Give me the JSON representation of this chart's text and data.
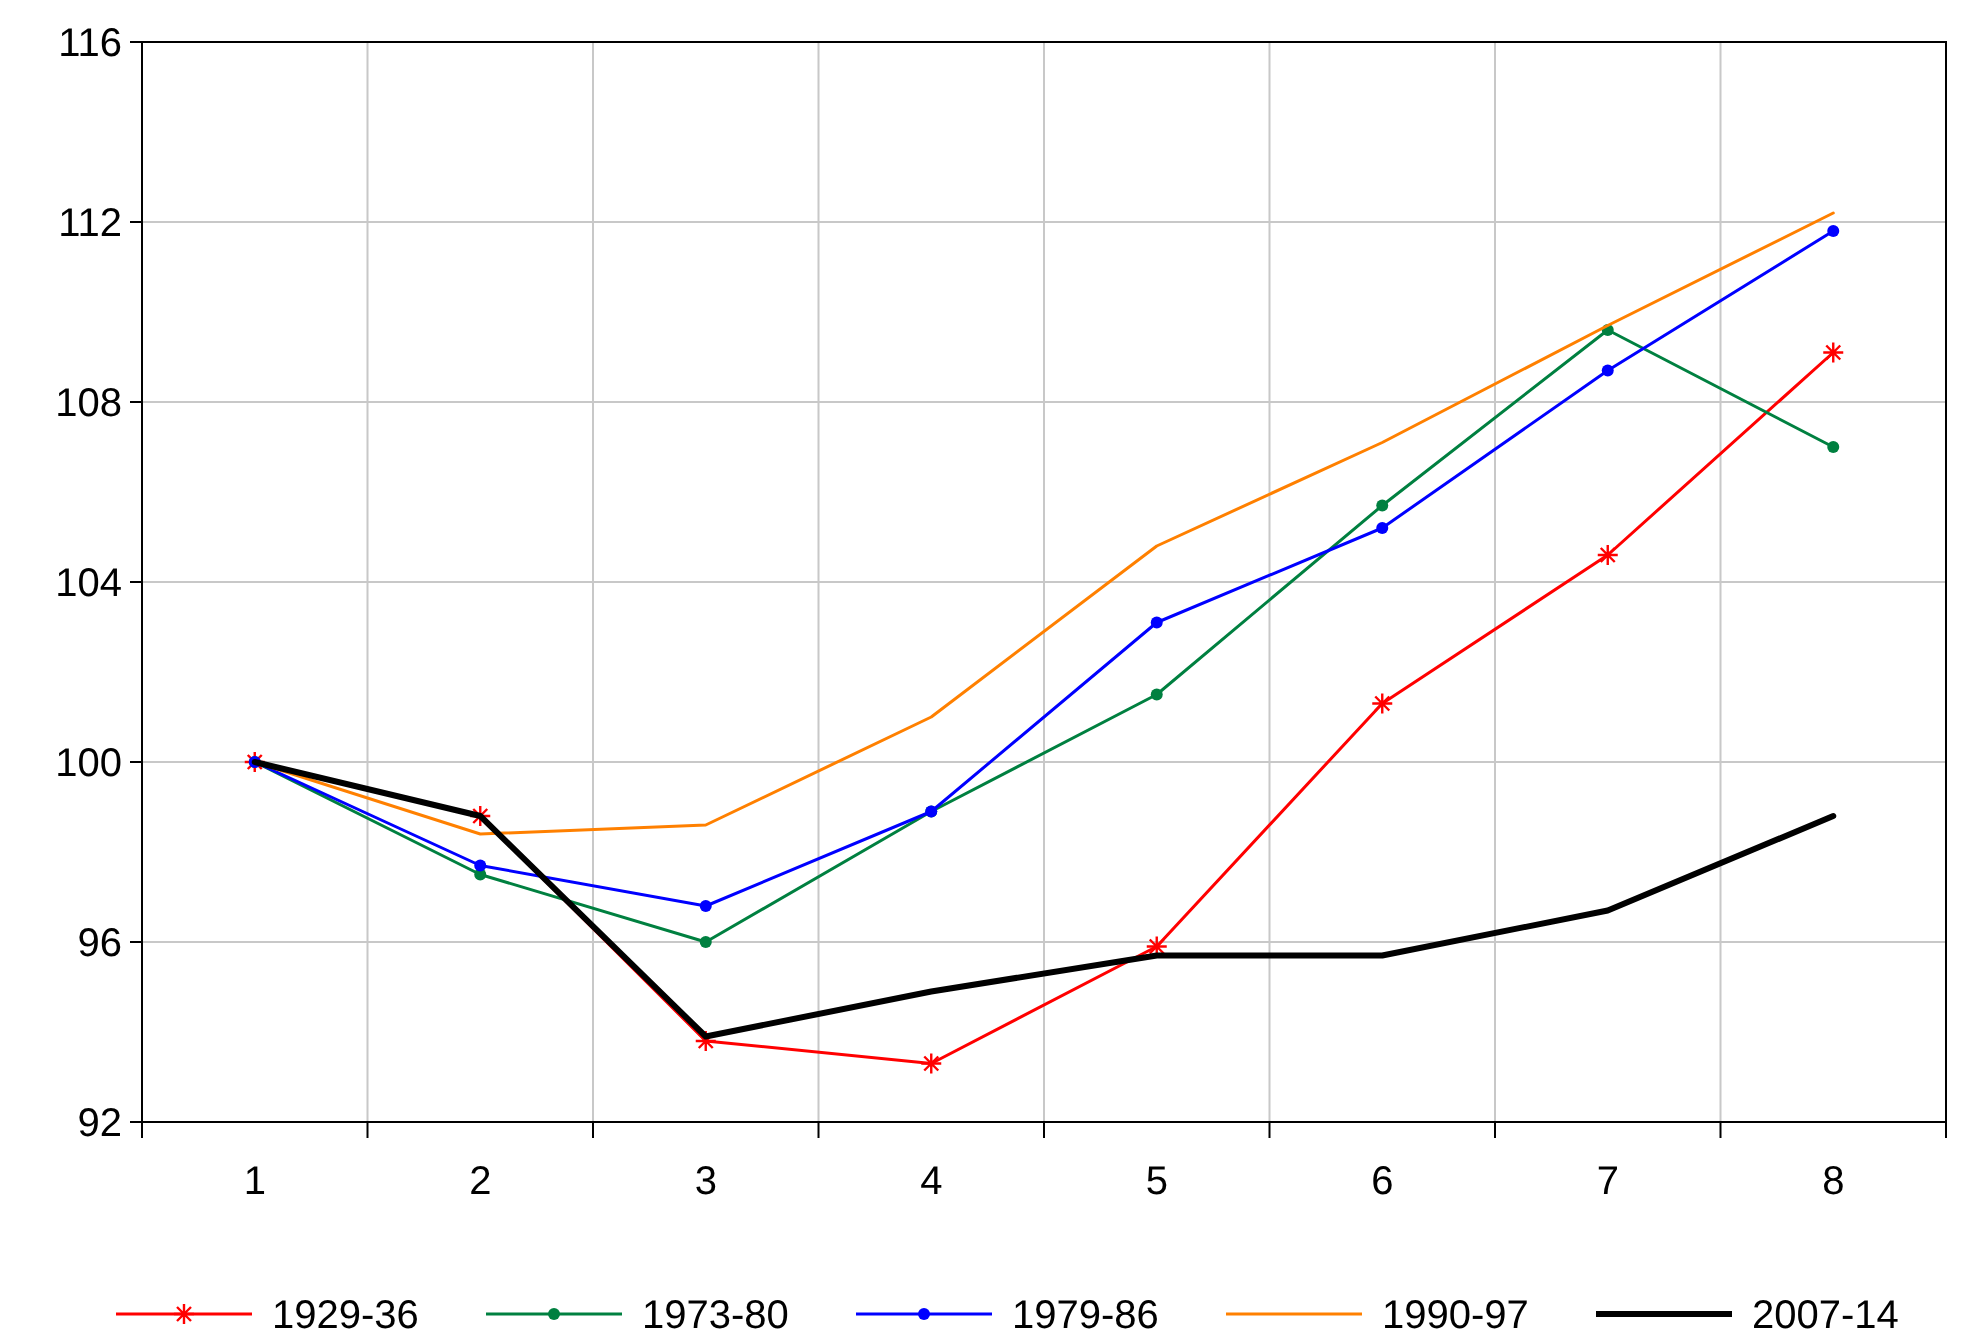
{
  "chart_data": {
    "type": "line",
    "categories": [
      "1",
      "2",
      "3",
      "4",
      "5",
      "6",
      "7",
      "8"
    ],
    "ylim": [
      92,
      116
    ],
    "yticks": [
      92,
      96,
      100,
      104,
      108,
      112,
      116
    ],
    "grid": true,
    "legend": "bottom",
    "series": [
      {
        "name": "1929-36",
        "color": "#ff0000",
        "marker": "cross",
        "values": [
          100,
          98.8,
          93.8,
          93.3,
          95.9,
          101.3,
          104.6,
          109.1
        ]
      },
      {
        "name": "1973-80",
        "color": "#008040",
        "marker": "circle",
        "values": [
          100,
          97.5,
          96.0,
          98.9,
          101.5,
          105.7,
          109.6,
          107.0
        ]
      },
      {
        "name": "1979-86",
        "color": "#0000ff",
        "marker": "circle",
        "values": [
          100,
          97.7,
          96.8,
          98.9,
          103.1,
          105.2,
          108.7,
          111.8
        ]
      },
      {
        "name": "1990-97",
        "color": "#ff8000",
        "marker": "none",
        "values": [
          100,
          98.4,
          98.6,
          101.0,
          104.8,
          107.1,
          109.7,
          112.2
        ]
      },
      {
        "name": "2007-14",
        "color": "#000000",
        "marker": "none",
        "values": [
          100,
          98.8,
          93.9,
          94.9,
          95.7,
          95.7,
          96.7,
          98.8
        ]
      }
    ]
  }
}
